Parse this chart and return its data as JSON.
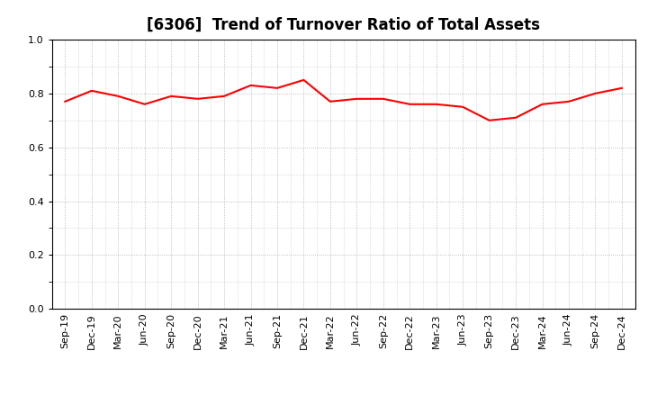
{
  "title": "[6306]  Trend of Turnover Ratio of Total Assets",
  "x_labels": [
    "Sep-19",
    "Dec-19",
    "Mar-20",
    "Jun-20",
    "Sep-20",
    "Dec-20",
    "Mar-21",
    "Jun-21",
    "Sep-21",
    "Dec-21",
    "Mar-22",
    "Jun-22",
    "Sep-22",
    "Dec-22",
    "Mar-23",
    "Jun-23",
    "Sep-23",
    "Dec-23",
    "Mar-24",
    "Jun-24",
    "Sep-24",
    "Dec-24"
  ],
  "y_values": [
    0.77,
    0.81,
    0.79,
    0.76,
    0.79,
    0.78,
    0.79,
    0.83,
    0.82,
    0.85,
    0.77,
    0.78,
    0.78,
    0.76,
    0.76,
    0.75,
    0.7,
    0.71,
    0.76,
    0.77,
    0.8,
    0.82
  ],
  "line_color": "#FF0000",
  "line_width": 1.5,
  "ylim": [
    0.0,
    1.0
  ],
  "yticks": [
    0.0,
    0.2,
    0.4,
    0.6,
    0.8,
    1.0
  ],
  "grid_color": "#999999",
  "grid_style": "dotted",
  "background_color": "#ffffff",
  "title_fontsize": 12,
  "tick_fontsize": 8
}
